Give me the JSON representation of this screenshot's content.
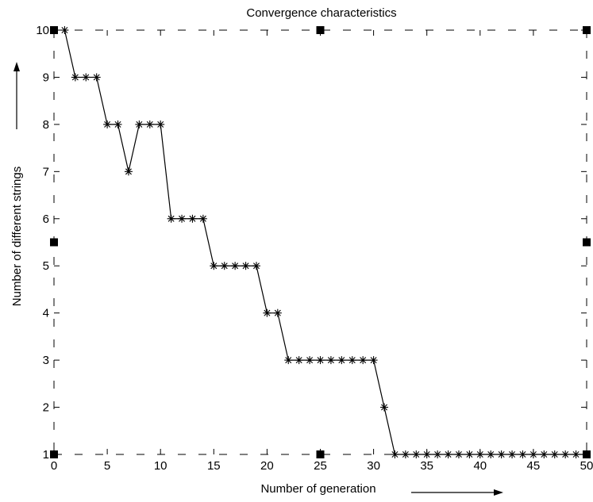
{
  "chart_data": {
    "type": "line",
    "title": "Convergence characteristics",
    "xlabel": "Number of generation",
    "ylabel": "Number of different strings",
    "xlim": [
      0,
      50
    ],
    "ylim": [
      1,
      10
    ],
    "xticks": [
      0,
      5,
      10,
      15,
      20,
      25,
      30,
      35,
      40,
      45,
      50
    ],
    "yticks": [
      1,
      2,
      3,
      4,
      5,
      6,
      7,
      8,
      9,
      10
    ],
    "grid": true,
    "legend": "none",
    "marker": "asterisk",
    "line_color": "#000000",
    "series": [
      {
        "x": [
          1,
          2,
          3,
          4,
          5,
          6,
          7,
          8,
          9,
          10,
          11,
          12,
          13,
          14,
          15,
          16,
          17,
          18,
          19,
          20,
          21,
          22,
          23,
          24,
          25,
          26,
          27,
          28,
          29,
          30,
          31,
          32,
          33,
          34,
          35,
          36,
          37,
          38,
          39,
          40,
          41,
          42,
          43,
          44,
          45,
          46,
          47,
          48,
          49,
          50
        ],
        "y": [
          10,
          9,
          9,
          9,
          8,
          8,
          7,
          8,
          8,
          8,
          6,
          6,
          6,
          6,
          5,
          5,
          5,
          5,
          5,
          4,
          4,
          3,
          3,
          3,
          3,
          3,
          3,
          3,
          3,
          3,
          2,
          1,
          1,
          1,
          1,
          1,
          1,
          1,
          1,
          1,
          1,
          1,
          1,
          1,
          1,
          1,
          1,
          1,
          1,
          1
        ]
      }
    ]
  }
}
